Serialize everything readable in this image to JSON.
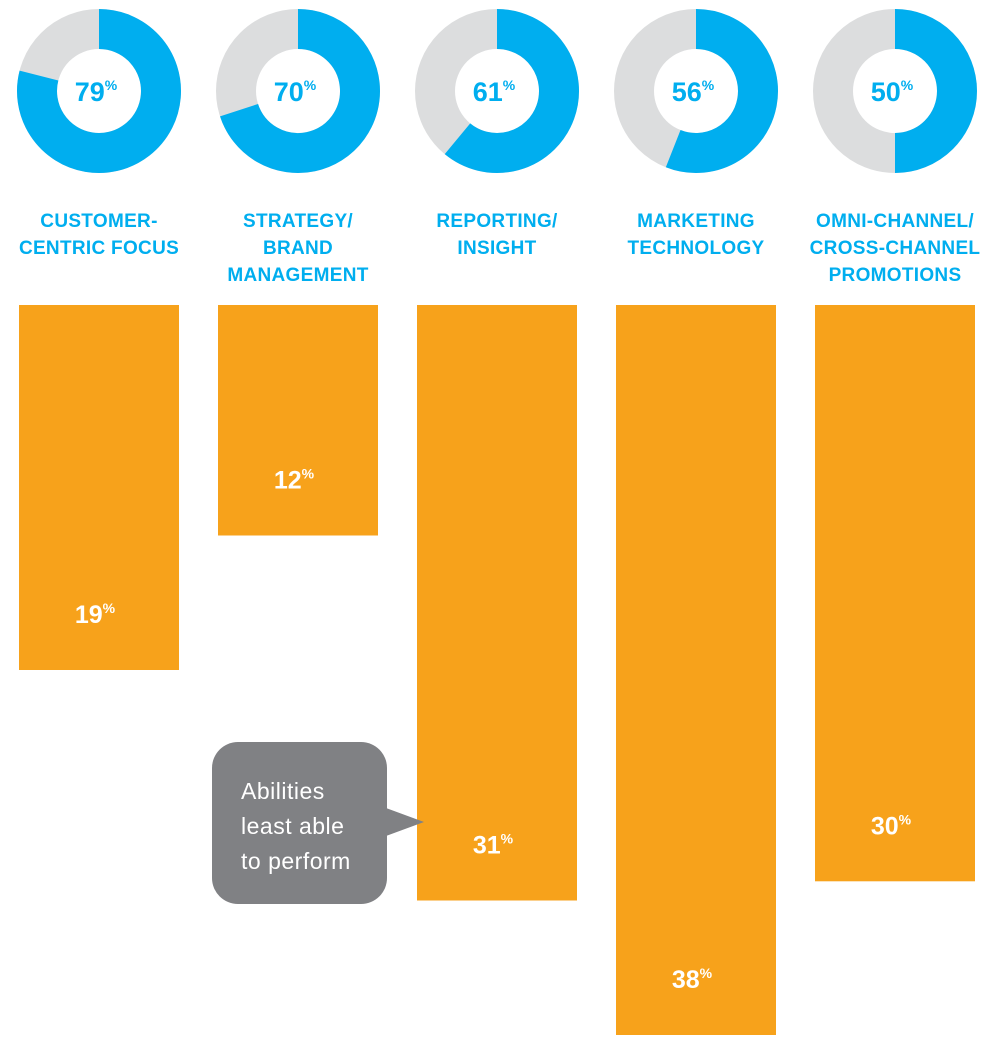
{
  "colors": {
    "donut_fill": "#00aeef",
    "donut_rest": "#dcddde",
    "bar": "#f7a21b",
    "label": "#00aeef",
    "callout": "#808184",
    "bar_text": "#ffffff"
  },
  "callout": {
    "lines": [
      "Abilities",
      "least able",
      "to perform"
    ]
  },
  "chart_data": {
    "type": "bar",
    "categories": [
      [
        "CUSTOMER-",
        "CENTRIC FOCUS"
      ],
      [
        "STRATEGY/",
        "BRAND",
        "MANAGEMENT"
      ],
      [
        "REPORTING/",
        "INSIGHT"
      ],
      [
        "MARKETING",
        "TECHNOLOGY"
      ],
      [
        "OMNI-CHANNEL/",
        "CROSS-CHANNEL",
        "PROMOTIONS"
      ]
    ],
    "series": [
      {
        "values": [
          79,
          70,
          61,
          56,
          50
        ],
        "labels": [
          "79",
          "70",
          "61",
          "56",
          "50"
        ],
        "unit": "%",
        "style": "donut"
      },
      {
        "name": "Abilities least able to perform",
        "values": [
          19,
          12,
          31,
          38,
          30
        ],
        "labels": [
          "19",
          "12",
          "31",
          "38",
          "30"
        ],
        "unit": "%",
        "style": "bar-down"
      }
    ],
    "title": "",
    "xlabel": "",
    "ylabel": "",
    "ylim": [
      0,
      38
    ],
    "grid": false,
    "legend": "none"
  }
}
